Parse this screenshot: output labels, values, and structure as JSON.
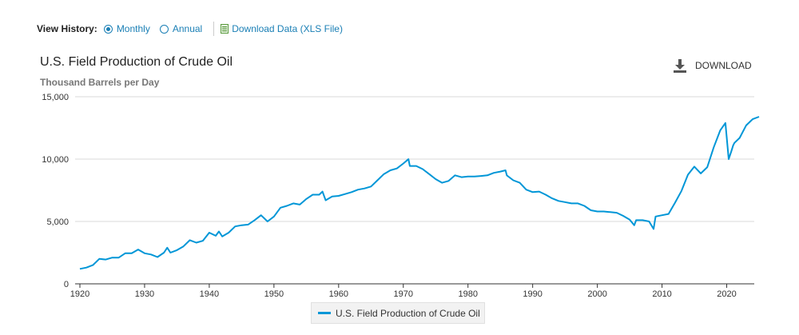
{
  "view_history": {
    "label": "View History:",
    "options": [
      {
        "label": "Monthly",
        "selected": true
      },
      {
        "label": "Annual",
        "selected": false
      }
    ],
    "download_link": "Download Data (XLS File)"
  },
  "download_button": {
    "label": "DOWNLOAD",
    "icon": "download-icon"
  },
  "colors": {
    "series": "#0096d7",
    "link": "#1a7fb5"
  },
  "chart_data": {
    "type": "line",
    "title": "U.S. Field Production of Crude Oil",
    "subtitle": "Thousand Barrels per Day",
    "xlabel": "",
    "ylabel": "Thousand Barrels per Day",
    "xlim": [
      1920,
      2025
    ],
    "ylim": [
      0,
      15000
    ],
    "yticks": [
      0,
      5000,
      10000,
      15000
    ],
    "ytick_labels": [
      "0",
      "5,000",
      "10,000",
      "15,000"
    ],
    "xticks": [
      1920,
      1930,
      1940,
      1950,
      1960,
      1970,
      1980,
      1990,
      2000,
      2010,
      2020
    ],
    "xtick_labels": [
      "1920",
      "1930",
      "1940",
      "1950",
      "1960",
      "1970",
      "1980",
      "1990",
      "2000",
      "2010",
      "2020"
    ],
    "grid": true,
    "legend": "bottom-center",
    "series": [
      {
        "name": "U.S. Field Production of Crude Oil",
        "x": [
          1920,
          1921,
          1922,
          1923,
          1924,
          1925,
          1926,
          1927,
          1928,
          1929,
          1930,
          1931,
          1932,
          1933,
          1933.5,
          1934,
          1935,
          1936,
          1937,
          1938,
          1939,
          1940,
          1941,
          1941.5,
          1942,
          1943,
          1944,
          1945,
          1946,
          1947,
          1948,
          1949,
          1950,
          1951,
          1952,
          1953,
          1954,
          1955,
          1956,
          1957,
          1957.5,
          1958,
          1959,
          1960,
          1961,
          1962,
          1963,
          1964,
          1965,
          1966,
          1967,
          1968,
          1969,
          1970,
          1970.8,
          1971,
          1972,
          1973,
          1974,
          1975,
          1976,
          1977,
          1978,
          1979,
          1980,
          1981,
          1982,
          1983,
          1984,
          1985,
          1985.8,
          1986,
          1987,
          1988,
          1989,
          1990,
          1991,
          1992,
          1993,
          1994,
          1995,
          1996,
          1997,
          1998,
          1999,
          2000,
          2001,
          2002,
          2003,
          2004,
          2005,
          2005.7,
          2006,
          2007,
          2008,
          2008.7,
          2009,
          2010,
          2011,
          2012,
          2013,
          2014,
          2015,
          2016,
          2017,
          2018,
          2019,
          2019.8,
          2020.3,
          2020.7,
          2021,
          2021.2,
          2022,
          2023,
          2024,
          2025
        ],
        "values": [
          1200,
          1300,
          1500,
          2000,
          1950,
          2100,
          2100,
          2450,
          2450,
          2750,
          2450,
          2350,
          2150,
          2500,
          2900,
          2500,
          2700,
          3000,
          3500,
          3300,
          3450,
          4100,
          3850,
          4200,
          3800,
          4100,
          4600,
          4700,
          4750,
          5100,
          5500,
          5000,
          5400,
          6100,
          6250,
          6450,
          6350,
          6800,
          7150,
          7150,
          7400,
          6700,
          7000,
          7050,
          7200,
          7350,
          7550,
          7650,
          7800,
          8300,
          8800,
          9100,
          9250,
          9650,
          10000,
          9450,
          9450,
          9200,
          8800,
          8400,
          8100,
          8250,
          8700,
          8550,
          8600,
          8600,
          8650,
          8700,
          8900,
          9000,
          9100,
          8700,
          8300,
          8100,
          7550,
          7350,
          7400,
          7150,
          6850,
          6650,
          6550,
          6450,
          6450,
          6250,
          5900,
          5800,
          5800,
          5750,
          5700,
          5450,
          5150,
          4700,
          5100,
          5100,
          5000,
          4400,
          5400,
          5500,
          5600,
          6500,
          7450,
          8750,
          9400,
          8850,
          9350,
          10950,
          12300,
          12900,
          10000,
          10600,
          11100,
          11300,
          11700,
          12700,
          13200,
          13400
        ]
      }
    ]
  }
}
